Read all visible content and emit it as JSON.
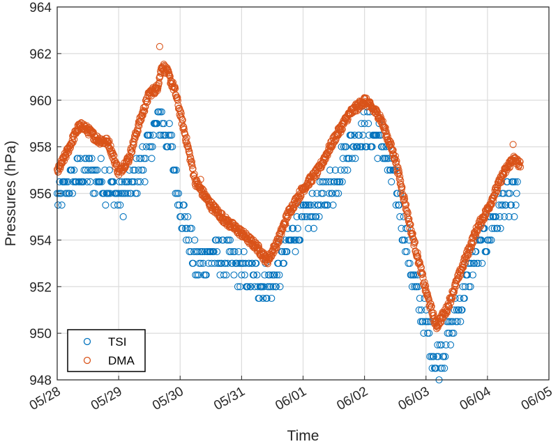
{
  "chart_data": {
    "type": "scatter",
    "title": "",
    "xlabel": "Time",
    "ylabel": "Pressures (hPa)",
    "xlim": [
      "05/28",
      "06/05"
    ],
    "ylim": [
      948,
      964
    ],
    "xticks": [
      "05/28",
      "05/29",
      "05/30",
      "05/31",
      "06/01",
      "06/02",
      "06/03",
      "06/04",
      "06/05"
    ],
    "yticks": [
      948,
      950,
      952,
      954,
      956,
      958,
      960,
      962,
      964
    ],
    "grid": true,
    "legend_position": "bottom-left",
    "marker": "open-circle",
    "series": [
      {
        "name": "TSI",
        "color": "#0072BD",
        "trend_points": [
          [
            "05/28 00:00",
            955.7
          ],
          [
            "05/28 06:00",
            956.6
          ],
          [
            "05/28 12:00",
            957.0
          ],
          [
            "05/28 18:00",
            956.6
          ],
          [
            "05/29 00:00",
            955.8
          ],
          [
            "05/29 06:00",
            956.4
          ],
          [
            "05/29 12:00",
            958.0
          ],
          [
            "05/29 16:00",
            959.2
          ],
          [
            "05/29 20:00",
            958.2
          ],
          [
            "05/30 00:00",
            955.6
          ],
          [
            "05/30 06:00",
            953.0
          ],
          [
            "05/30 12:00",
            953.4
          ],
          [
            "05/30 18:00",
            953.2
          ],
          [
            "05/31 00:00",
            952.6
          ],
          [
            "05/31 06:00",
            952.3
          ],
          [
            "05/31 12:00",
            952.1
          ],
          [
            "05/31 18:00",
            953.8
          ],
          [
            "06/01 00:00",
            954.8
          ],
          [
            "06/01 06:00",
            955.5
          ],
          [
            "06/01 12:00",
            956.4
          ],
          [
            "06/01 18:00",
            958.0
          ],
          [
            "06/02 00:00",
            958.7
          ],
          [
            "06/02 06:00",
            958.2
          ],
          [
            "06/02 12:00",
            956.4
          ],
          [
            "06/02 18:00",
            953.0
          ],
          [
            "06/02 21:00",
            951.5
          ],
          [
            "06/03 00:00",
            950.3
          ],
          [
            "06/03 04:00",
            948.7
          ],
          [
            "06/03 08:00",
            949.6
          ],
          [
            "06/03 12:00",
            950.8
          ],
          [
            "06/03 18:00",
            952.8
          ],
          [
            "06/04 00:00",
            954.3
          ],
          [
            "06/04 06:00",
            955.5
          ],
          [
            "06/04 12:00",
            956.0
          ]
        ]
      },
      {
        "name": "DMA",
        "color": "#D95319",
        "trend_points": [
          [
            "05/28 00:00",
            956.9
          ],
          [
            "05/28 04:00",
            957.8
          ],
          [
            "05/28 08:00",
            958.8
          ],
          [
            "05/28 10:00",
            958.9
          ],
          [
            "05/28 16:00",
            958.3
          ],
          [
            "05/28 20:00",
            958.2
          ],
          [
            "05/29 00:00",
            956.9
          ],
          [
            "05/29 04:00",
            957.5
          ],
          [
            "05/29 08:00",
            959.0
          ],
          [
            "05/29 12:00",
            960.3
          ],
          [
            "05/29 15:00",
            960.5
          ],
          [
            "05/29 17:00",
            961.5
          ],
          [
            "05/29 19:00",
            961.2
          ],
          [
            "05/29 22:00",
            960.4
          ],
          [
            "05/30 02:00",
            958.5
          ],
          [
            "05/30 06:00",
            956.5
          ],
          [
            "05/30 12:00",
            955.5
          ],
          [
            "05/30 18:00",
            954.8
          ],
          [
            "05/31 00:00",
            954.3
          ],
          [
            "05/31 06:00",
            953.7
          ],
          [
            "05/31 10:00",
            953.1
          ],
          [
            "05/31 14:00",
            953.9
          ],
          [
            "05/31 18:00",
            955.1
          ],
          [
            "06/01 00:00",
            956.2
          ],
          [
            "06/01 06:00",
            957.0
          ],
          [
            "06/01 12:00",
            958.3
          ],
          [
            "06/01 18:00",
            959.4
          ],
          [
            "06/02 00:00",
            960.0
          ],
          [
            "06/02 06:00",
            959.3
          ],
          [
            "06/02 12:00",
            957.5
          ],
          [
            "06/02 18:00",
            954.5
          ],
          [
            "06/03 00:00",
            951.8
          ],
          [
            "06/03 04:00",
            950.3
          ],
          [
            "06/03 08:00",
            951.0
          ],
          [
            "06/03 14:00",
            952.8
          ],
          [
            "06/03 20:00",
            954.5
          ],
          [
            "06/04 00:00",
            955.3
          ],
          [
            "06/04 06:00",
            956.8
          ],
          [
            "06/04 10:00",
            957.5
          ],
          [
            "06/04 13:00",
            957.2
          ]
        ],
        "outliers": [
          [
            "05/29 16:00",
            962.3
          ],
          [
            "05/30 08:00",
            956.6
          ],
          [
            "06/04 10:00",
            958.1
          ]
        ]
      }
    ]
  }
}
